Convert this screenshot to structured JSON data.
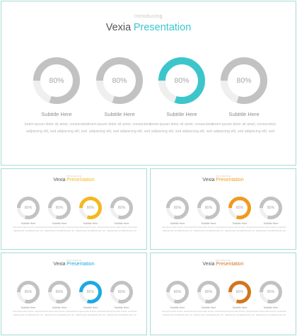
{
  "slides": [
    {
      "intro": "Introducing",
      "title_main": "Vexia",
      "title_highlight": "Presentation",
      "highlight_color": "#3cc6cc",
      "title_color": "#3cc6cc",
      "charts": [
        {
          "value_label": "80%",
          "percent": 80,
          "accent": false
        },
        {
          "value_label": "80%",
          "percent": 80,
          "accent": false
        },
        {
          "value_label": "80%",
          "percent": 80,
          "accent": true
        },
        {
          "value_label": "80%",
          "percent": 80,
          "accent": false
        }
      ],
      "items": [
        {
          "subtitle": "Subtitle Here",
          "body": "lorem ipsum dolor sit amet, consectetur adipiscing elit, sed adipiscing elit, sed"
        },
        {
          "subtitle": "Subtitle Here",
          "body": "lorem ipsum dolor sit amet, consectetur adipiscing elit, sed adipiscing elit, sed"
        },
        {
          "subtitle": "Subtitle Here",
          "body": "lorem ipsum dolor sit amet, consectetur adipiscing elit, sed adipiscing elit, sed"
        },
        {
          "subtitle": "Subtitle Here",
          "body": "lorem ipsum dolor sit amet, consectetur adipiscing elit, sed adipiscing elit, sed"
        }
      ]
    },
    {
      "intro": "Introducing",
      "title_main": "Vexia",
      "title_highlight": "Presentation",
      "highlight_color": "#f2b91e",
      "title_color": "#f2b91e",
      "charts": [
        {
          "value_label": "80%",
          "percent": 80,
          "accent": false
        },
        {
          "value_label": "80%",
          "percent": 80,
          "accent": false
        },
        {
          "value_label": "80%",
          "percent": 80,
          "accent": true
        },
        {
          "value_label": "80%",
          "percent": 80,
          "accent": false
        }
      ],
      "items": [
        {
          "subtitle": "Subtitle Here",
          "body": "lorem ipsum dolor sit amet, consectetur adipiscing elit, sed adipiscing elit, sed"
        },
        {
          "subtitle": "Subtitle Here",
          "body": "lorem ipsum dolor sit amet, consectetur adipiscing elit, sed adipiscing elit, sed"
        },
        {
          "subtitle": "Subtitle Here",
          "body": "lorem ipsum dolor sit amet, consectetur adipiscing elit, sed adipiscing elit, sed"
        },
        {
          "subtitle": "Subtitle Here",
          "body": "lorem ipsum dolor sit amet, consectetur adipiscing elit, sed adipiscing elit, sed"
        }
      ]
    },
    {
      "intro": "Introducing",
      "title_main": "Vexia",
      "title_highlight": "Presentation",
      "highlight_color": "#f29a1c",
      "title_color": "#f29a1c",
      "charts": [
        {
          "value_label": "80%",
          "percent": 80,
          "accent": false
        },
        {
          "value_label": "80%",
          "percent": 80,
          "accent": false
        },
        {
          "value_label": "80%",
          "percent": 80,
          "accent": true
        },
        {
          "value_label": "80%",
          "percent": 80,
          "accent": false
        }
      ],
      "items": [
        {
          "subtitle": "Subtitle Here",
          "body": "lorem ipsum dolor sit amet, consectetur adipiscing elit, sed adipiscing elit, sed"
        },
        {
          "subtitle": "Subtitle Here",
          "body": "lorem ipsum dolor sit amet, consectetur adipiscing elit, sed adipiscing elit, sed"
        },
        {
          "subtitle": "Subtitle Here",
          "body": "lorem ipsum dolor sit amet, consectetur adipiscing elit, sed adipiscing elit, sed"
        },
        {
          "subtitle": "Subtitle Here",
          "body": "lorem ipsum dolor sit amet, consectetur adipiscing elit, sed adipiscing elit, sed"
        }
      ]
    },
    {
      "intro": "Introducing",
      "title_main": "Vexia",
      "title_highlight": "Presentation",
      "highlight_color": "#1ea9e1",
      "title_color": "#1ea9e1",
      "charts": [
        {
          "value_label": "80%",
          "percent": 80,
          "accent": false
        },
        {
          "value_label": "80%",
          "percent": 80,
          "accent": false
        },
        {
          "value_label": "80%",
          "percent": 80,
          "accent": true
        },
        {
          "value_label": "80%",
          "percent": 80,
          "accent": false
        }
      ],
      "items": [
        {
          "subtitle": "Subtitle Here",
          "body": "lorem ipsum dolor sit amet, consectetur adipiscing elit, sed adipiscing elit, sed"
        },
        {
          "subtitle": "Subtitle Here",
          "body": "lorem ipsum dolor sit amet, consectetur adipiscing elit, sed adipiscing elit, sed"
        },
        {
          "subtitle": "Subtitle Here",
          "body": "lorem ipsum dolor sit amet, consectetur adipiscing elit, sed adipiscing elit, sed"
        },
        {
          "subtitle": "Subtitle Here",
          "body": "lorem ipsum dolor sit amet, consectetur adipiscing elit, sed adipiscing elit, sed"
        }
      ]
    },
    {
      "intro": "Introducing",
      "title_main": "Vexia",
      "title_highlight": "Presentation",
      "highlight_color": "#d2761c",
      "title_color": "#d2761c",
      "charts": [
        {
          "value_label": "80%",
          "percent": 80,
          "accent": false
        },
        {
          "value_label": "80%",
          "percent": 80,
          "accent": false
        },
        {
          "value_label": "80%",
          "percent": 80,
          "accent": true
        },
        {
          "value_label": "80%",
          "percent": 80,
          "accent": false
        }
      ],
      "items": [
        {
          "subtitle": "Subtitle Here",
          "body": "lorem ipsum dolor sit amet, consectetur adipiscing elit, sed adipiscing elit, sed"
        },
        {
          "subtitle": "Subtitle Here",
          "body": "lorem ipsum dolor sit amet, consectetur adipiscing elit, sed adipiscing elit, sed"
        },
        {
          "subtitle": "Subtitle Here",
          "body": "lorem ipsum dolor sit amet, consectetur adipiscing elit, sed adipiscing elit, sed"
        },
        {
          "subtitle": "Subtitle Here",
          "body": "lorem ipsum dolor sit amet, consectetur adipiscing elit, sed adipiscing elit, sed"
        }
      ]
    }
  ],
  "colors": {
    "frame_border": "#a9dad6",
    "ring_track": "#efefef",
    "ring_gray": "#c2c2c2",
    "label_gray": "#a6a6a6"
  }
}
